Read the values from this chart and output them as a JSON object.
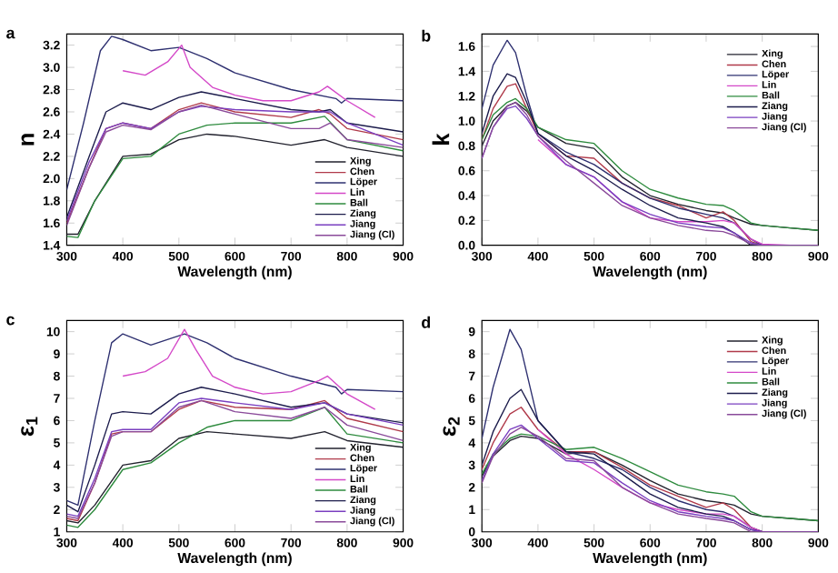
{
  "chart_data": [
    {
      "type": "line",
      "title": "a",
      "xlabel": "Wavelength (nm)",
      "ylabel": "n",
      "xlim": [
        300,
        900
      ],
      "ylim": [
        1.4,
        3.3
      ],
      "xticks": [
        300,
        400,
        500,
        600,
        700,
        800,
        900
      ],
      "yticks": [
        1.4,
        1.6,
        1.8,
        {
          "value": 2,
          "label": "2.0"
        },
        2.2,
        2.4,
        2.6,
        2.8,
        {
          "value": 3,
          "label": "3.0"
        },
        3.2
      ],
      "legend": "bottom right",
      "series": [
        {
          "name": "Xing",
          "color": "#22222e",
          "x": [
            300,
            320,
            350,
            400,
            450,
            500,
            550,
            600,
            700,
            760,
            800,
            900
          ],
          "values": [
            1.5,
            1.5,
            1.8,
            2.2,
            2.22,
            2.35,
            2.4,
            2.38,
            2.3,
            2.35,
            2.28,
            2.2
          ]
        },
        {
          "name": "Chen",
          "color": "#b03a4a",
          "x": [
            300,
            340,
            370,
            400,
            450,
            500,
            540,
            600,
            700,
            750,
            770,
            800,
            900
          ],
          "values": [
            1.6,
            2.1,
            2.45,
            2.5,
            2.45,
            2.62,
            2.68,
            2.6,
            2.55,
            2.62,
            2.58,
            2.45,
            2.35
          ]
        },
        {
          "name": "Löper",
          "color": "#2e3070",
          "x": [
            300,
            330,
            360,
            380,
            400,
            450,
            500,
            550,
            600,
            700,
            780,
            790,
            800,
            900
          ],
          "values": [
            1.9,
            2.5,
            3.15,
            3.28,
            3.25,
            3.15,
            3.18,
            3.08,
            2.95,
            2.8,
            2.72,
            2.68,
            2.72,
            2.7
          ]
        },
        {
          "name": "Lin",
          "color": "#d448c8",
          "x": [
            400,
            440,
            480,
            505,
            520,
            560,
            600,
            650,
            700,
            750,
            765,
            800,
            850
          ],
          "values": [
            2.97,
            2.93,
            3.05,
            3.2,
            3.0,
            2.82,
            2.75,
            2.7,
            2.7,
            2.78,
            2.83,
            2.7,
            2.55
          ]
        },
        {
          "name": "Ball",
          "color": "#2e8b3e",
          "x": [
            300,
            320,
            350,
            400,
            450,
            500,
            550,
            600,
            700,
            760,
            800,
            900
          ],
          "values": [
            1.48,
            1.47,
            1.8,
            2.18,
            2.2,
            2.4,
            2.48,
            2.5,
            2.5,
            2.56,
            2.35,
            2.25
          ]
        },
        {
          "name": "Ziang",
          "color": "#1c1c4c",
          "x": [
            300,
            340,
            370,
            400,
            450,
            500,
            540,
            600,
            700,
            750,
            770,
            800,
            900
          ],
          "values": [
            1.65,
            2.2,
            2.6,
            2.68,
            2.62,
            2.73,
            2.78,
            2.72,
            2.62,
            2.6,
            2.62,
            2.5,
            2.42
          ]
        },
        {
          "name": "Jiang",
          "color": "#7a3fc0",
          "x": [
            300,
            340,
            370,
            400,
            450,
            500,
            540,
            600,
            700,
            750,
            770,
            800,
            900
          ],
          "values": [
            1.62,
            2.15,
            2.45,
            2.5,
            2.45,
            2.6,
            2.65,
            2.62,
            2.6,
            2.6,
            2.6,
            2.5,
            2.3
          ]
        },
        {
          "name": "Jiang (Cl)",
          "color": "#8a4a9a",
          "x": [
            300,
            340,
            370,
            400,
            450,
            500,
            540,
            600,
            700,
            750,
            770,
            800,
            900
          ],
          "values": [
            1.58,
            2.1,
            2.42,
            2.48,
            2.44,
            2.6,
            2.66,
            2.58,
            2.45,
            2.45,
            2.5,
            2.35,
            2.28
          ]
        }
      ]
    },
    {
      "type": "line",
      "title": "b",
      "xlabel": "Wavelength (nm)",
      "ylabel": "k",
      "xlim": [
        300,
        900
      ],
      "ylim": [
        0,
        1.7
      ],
      "xticks": [
        300,
        400,
        500,
        600,
        700,
        800,
        900
      ],
      "yticks": [
        {
          "value": 0,
          "label": "0.0"
        },
        0.2,
        0.4,
        0.6,
        0.8,
        {
          "value": 1,
          "label": "1.0"
        },
        1.2,
        1.4,
        1.6
      ],
      "legend": "top right",
      "series": [
        {
          "name": "Xing",
          "color": "#22222e",
          "x": [
            300,
            320,
            345,
            360,
            380,
            400,
            450,
            500,
            550,
            600,
            650,
            700,
            730,
            750,
            780,
            800,
            850,
            900
          ],
          "values": [
            0.8,
            1.0,
            1.12,
            1.15,
            1.08,
            0.95,
            0.82,
            0.78,
            0.55,
            0.4,
            0.33,
            0.28,
            0.26,
            0.22,
            0.17,
            0.16,
            0.14,
            0.12
          ]
        },
        {
          "name": "Chen",
          "color": "#b03a4a",
          "x": [
            300,
            320,
            345,
            360,
            380,
            400,
            450,
            500,
            550,
            600,
            650,
            700,
            730,
            750,
            780,
            800,
            850,
            900
          ],
          "values": [
            0.85,
            1.1,
            1.28,
            1.3,
            1.1,
            0.9,
            0.72,
            0.7,
            0.5,
            0.38,
            0.32,
            0.22,
            0.27,
            0.2,
            0.03,
            0.0,
            0.0,
            0.0
          ]
        },
        {
          "name": "Löper",
          "color": "#2e3070",
          "x": [
            300,
            320,
            345,
            360,
            380,
            400,
            450,
            500,
            550,
            600,
            650,
            700,
            730,
            750,
            780,
            800,
            850,
            900
          ],
          "values": [
            1.1,
            1.45,
            1.65,
            1.55,
            1.2,
            0.9,
            0.75,
            0.65,
            0.5,
            0.38,
            0.3,
            0.25,
            0.22,
            0.18,
            0.05,
            0.0,
            0.0,
            0.0
          ]
        },
        {
          "name": "Lin",
          "color": "#d448c8",
          "x": [
            400,
            450,
            500,
            550,
            600,
            650,
            700,
            730,
            750,
            780,
            800,
            850
          ],
          "values": [
            0.85,
            0.65,
            0.55,
            0.35,
            0.22,
            0.19,
            0.19,
            0.2,
            0.18,
            0.05,
            0.01,
            0.0
          ]
        },
        {
          "name": "Ball",
          "color": "#2e8b3e",
          "x": [
            300,
            320,
            345,
            360,
            380,
            400,
            450,
            500,
            550,
            600,
            650,
            700,
            730,
            750,
            780,
            800,
            850,
            900
          ],
          "values": [
            0.85,
            1.05,
            1.15,
            1.18,
            1.1,
            0.95,
            0.85,
            0.82,
            0.6,
            0.45,
            0.38,
            0.33,
            0.32,
            0.28,
            0.18,
            0.16,
            0.14,
            0.12
          ]
        },
        {
          "name": "Ziang",
          "color": "#1c1c4c",
          "x": [
            300,
            320,
            345,
            360,
            380,
            400,
            450,
            500,
            550,
            600,
            650,
            700,
            730,
            750,
            780,
            800,
            850,
            900
          ],
          "values": [
            0.9,
            1.2,
            1.38,
            1.35,
            1.15,
            0.9,
            0.72,
            0.6,
            0.45,
            0.32,
            0.22,
            0.18,
            0.15,
            0.1,
            0.0,
            0.0,
            0.0,
            0.0
          ]
        },
        {
          "name": "Jiang",
          "color": "#7a3fc0",
          "x": [
            300,
            320,
            345,
            360,
            380,
            400,
            450,
            500,
            550,
            600,
            650,
            700,
            730,
            750,
            780,
            800,
            850,
            900
          ],
          "values": [
            0.7,
            0.95,
            1.1,
            1.12,
            1.02,
            0.88,
            0.65,
            0.55,
            0.35,
            0.25,
            0.18,
            0.15,
            0.14,
            0.1,
            0.02,
            0.0,
            0.0,
            0.0
          ]
        },
        {
          "name": "Jiang (Cl)",
          "color": "#8a4a9a",
          "x": [
            300,
            320,
            345,
            360,
            380,
            400,
            450,
            500,
            550,
            600,
            650,
            700,
            730,
            750,
            780,
            800,
            850,
            900
          ],
          "values": [
            0.7,
            0.95,
            1.12,
            1.15,
            1.05,
            0.88,
            0.68,
            0.5,
            0.32,
            0.22,
            0.16,
            0.12,
            0.11,
            0.08,
            0.01,
            0.0,
            0.0,
            0.0
          ]
        }
      ]
    },
    {
      "type": "line",
      "title": "c",
      "xlabel": "Wavelength (nm)",
      "ylabel": "ε$_{1}$",
      "xlim": [
        300,
        900
      ],
      "ylim": [
        1,
        10.5
      ],
      "xticks": [
        300,
        400,
        500,
        600,
        700,
        800,
        900
      ],
      "yticks": [
        1,
        2,
        3,
        4,
        5,
        6,
        7,
        8,
        9,
        10
      ],
      "legend": "bottom right",
      "series": [
        {
          "name": "Xing",
          "color": "#22222e",
          "x": [
            300,
            320,
            350,
            400,
            450,
            500,
            550,
            600,
            700,
            760,
            800,
            900
          ],
          "values": [
            1.5,
            1.4,
            2.2,
            4.0,
            4.2,
            5.2,
            5.5,
            5.4,
            5.2,
            5.5,
            5.1,
            4.8
          ]
        },
        {
          "name": "Chen",
          "color": "#b03a4a",
          "x": [
            300,
            320,
            350,
            380,
            400,
            450,
            500,
            540,
            600,
            700,
            760,
            800,
            900
          ],
          "values": [
            1.6,
            1.5,
            3.2,
            5.4,
            5.5,
            5.5,
            6.5,
            6.9,
            6.6,
            6.5,
            6.9,
            6.1,
            5.5
          ]
        },
        {
          "name": "Löper",
          "color": "#2e3070",
          "x": [
            300,
            320,
            350,
            380,
            400,
            450,
            510,
            550,
            600,
            700,
            780,
            790,
            800,
            900
          ],
          "values": [
            2.4,
            2.2,
            6.0,
            9.5,
            9.9,
            9.4,
            9.9,
            9.5,
            8.8,
            8.0,
            7.5,
            7.2,
            7.4,
            7.3
          ]
        },
        {
          "name": "Lin",
          "color": "#d448c8",
          "x": [
            400,
            440,
            480,
            510,
            530,
            560,
            600,
            650,
            700,
            750,
            765,
            800,
            850
          ],
          "values": [
            8.0,
            8.2,
            8.8,
            10.1,
            9.2,
            8.0,
            7.5,
            7.2,
            7.3,
            7.8,
            8.0,
            7.2,
            6.5
          ]
        },
        {
          "name": "Ball",
          "color": "#2e8b3e",
          "x": [
            300,
            320,
            350,
            400,
            450,
            500,
            550,
            600,
            700,
            760,
            800,
            900
          ],
          "values": [
            1.3,
            1.2,
            2.0,
            3.8,
            4.1,
            5.0,
            5.7,
            6.0,
            6.0,
            6.6,
            5.4,
            5.0
          ]
        },
        {
          "name": "Ziang",
          "color": "#1c1c4c",
          "x": [
            300,
            320,
            350,
            380,
            400,
            450,
            500,
            540,
            600,
            700,
            760,
            800,
            900
          ],
          "values": [
            2.2,
            1.9,
            4.0,
            6.3,
            6.4,
            6.3,
            7.2,
            7.5,
            7.2,
            6.6,
            6.8,
            6.3,
            5.9
          ]
        },
        {
          "name": "Jiang",
          "color": "#7a3fc0",
          "x": [
            300,
            320,
            350,
            380,
            400,
            450,
            500,
            540,
            600,
            700,
            760,
            800,
            900
          ],
          "values": [
            1.8,
            1.7,
            3.4,
            5.5,
            5.6,
            5.6,
            6.8,
            7.0,
            6.8,
            6.5,
            6.8,
            6.3,
            5.8
          ]
        },
        {
          "name": "Jiang (Cl)",
          "color": "#8a4a9a",
          "x": [
            300,
            320,
            350,
            380,
            400,
            450,
            500,
            540,
            600,
            700,
            760,
            800,
            900
          ],
          "values": [
            1.7,
            1.6,
            3.2,
            5.3,
            5.5,
            5.5,
            6.6,
            6.9,
            6.4,
            6.1,
            6.6,
            5.8,
            5.1
          ]
        }
      ]
    },
    {
      "type": "line",
      "title": "d",
      "xlabel": "Wavelength (nm)",
      "ylabel": "ε$_{2}$",
      "xlim": [
        300,
        900
      ],
      "ylim": [
        0,
        9.5
      ],
      "xticks": [
        300,
        400,
        500,
        600,
        700,
        800,
        900
      ],
      "yticks": [
        0,
        1,
        2,
        3,
        4,
        5,
        6,
        7,
        8,
        9
      ],
      "legend": "top right",
      "series": [
        {
          "name": "Xing",
          "color": "#22222e",
          "x": [
            300,
            320,
            350,
            370,
            400,
            450,
            500,
            550,
            600,
            650,
            700,
            730,
            750,
            780,
            800,
            850,
            900
          ],
          "values": [
            2.5,
            3.4,
            4.1,
            4.3,
            4.2,
            3.5,
            3.6,
            3.0,
            2.3,
            1.7,
            1.4,
            1.3,
            1.2,
            0.8,
            0.7,
            0.6,
            0.5
          ]
        },
        {
          "name": "Chen",
          "color": "#b03a4a",
          "x": [
            300,
            320,
            350,
            370,
            400,
            450,
            500,
            550,
            600,
            650,
            700,
            730,
            750,
            780,
            800
          ],
          "values": [
            2.8,
            4.0,
            5.3,
            5.6,
            4.6,
            3.6,
            3.6,
            2.9,
            2.1,
            1.6,
            1.1,
            1.3,
            1.0,
            0.2,
            0.0
          ]
        },
        {
          "name": "Löper",
          "color": "#2e3070",
          "x": [
            300,
            320,
            350,
            370,
            400,
            450,
            500,
            550,
            600,
            650,
            700,
            730,
            750,
            780,
            800
          ],
          "values": [
            4.2,
            6.5,
            9.1,
            8.2,
            5.0,
            3.6,
            3.3,
            2.8,
            2.0,
            1.4,
            1.0,
            0.9,
            0.7,
            0.2,
            0.0
          ]
        },
        {
          "name": "Lin",
          "color": "#d448c8",
          "x": [
            400,
            450,
            500,
            550,
            600,
            650,
            700,
            730,
            750,
            780,
            800,
            850
          ],
          "values": [
            4.6,
            3.5,
            2.8,
            2.0,
            1.3,
            1.0,
            0.8,
            0.8,
            0.7,
            0.2,
            0.0,
            0.0
          ]
        },
        {
          "name": "Ball",
          "color": "#2e8b3e",
          "x": [
            300,
            320,
            350,
            370,
            400,
            450,
            500,
            550,
            600,
            650,
            700,
            730,
            750,
            780,
            800,
            850,
            900
          ],
          "values": [
            2.6,
            3.5,
            4.2,
            4.4,
            4.3,
            3.7,
            3.8,
            3.3,
            2.7,
            2.1,
            1.8,
            1.7,
            1.6,
            0.9,
            0.7,
            0.6,
            0.5
          ]
        },
        {
          "name": "Ziang",
          "color": "#1c1c4c",
          "x": [
            300,
            320,
            350,
            370,
            400,
            450,
            500,
            550,
            600,
            650,
            700,
            730,
            750,
            780,
            800,
            850,
            900
          ],
          "values": [
            3.0,
            4.5,
            6.0,
            6.4,
            5.0,
            3.6,
            3.5,
            2.6,
            1.7,
            1.1,
            0.8,
            0.7,
            0.5,
            0.1,
            0.0,
            0.0,
            0.0
          ]
        },
        {
          "name": "Jiang",
          "color": "#7a3fc0",
          "x": [
            300,
            320,
            350,
            370,
            400,
            450,
            500,
            550,
            600,
            650,
            700,
            730,
            750,
            780,
            800,
            850,
            900
          ],
          "values": [
            2.3,
            3.5,
            4.6,
            4.8,
            4.2,
            3.2,
            3.1,
            2.2,
            1.4,
            0.9,
            0.7,
            0.6,
            0.5,
            0.1,
            0.0,
            0.0,
            0.0
          ]
        },
        {
          "name": "Jiang (Cl)",
          "color": "#8a4a9a",
          "x": [
            300,
            320,
            350,
            370,
            400,
            450,
            500,
            550,
            600,
            650,
            700,
            730,
            750,
            780,
            800,
            850,
            900
          ],
          "values": [
            2.2,
            3.4,
            4.4,
            4.7,
            4.3,
            3.3,
            3.2,
            2.0,
            1.3,
            0.8,
            0.6,
            0.5,
            0.4,
            0.0,
            0.0,
            0.0,
            0.0
          ]
        }
      ]
    }
  ]
}
